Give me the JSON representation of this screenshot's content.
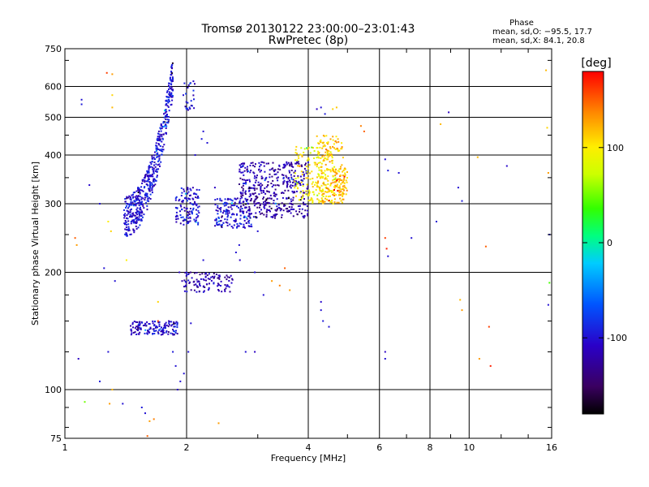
{
  "header": {
    "title_line1": "Tromsø 20130122 23:00:00–23:01:43",
    "title_line2": "RwPretec (8p)",
    "phase_heading": "Phase",
    "phase_line1": "mean, sd,O: −95.5, 17.7",
    "phase_line2": "mean, sd,X:  84.1, 20.8"
  },
  "colorbar": {
    "label": "[deg]",
    "ticks": [
      {
        "value": 100,
        "label": "100"
      },
      {
        "value": 0,
        "label": "0"
      },
      {
        "value": -100,
        "label": "-100"
      }
    ],
    "range": [
      -180,
      180
    ]
  },
  "chart_data": {
    "type": "scatter",
    "title": "Tromsø 20130122 23:00:00–23:01:43",
    "subtitle": "RwPretec (8p)",
    "xlabel": "Frequency [MHz]",
    "ylabel": "Stationary phase Virtual Height [km]",
    "xscale": "log",
    "yscale": "log",
    "xlim": [
      1,
      16
    ],
    "ylim": [
      75,
      750
    ],
    "grid": true,
    "xticks": [
      {
        "value": 1,
        "label": "1"
      },
      {
        "value": 2,
        "label": "2"
      },
      {
        "value": 4,
        "label": "4"
      },
      {
        "value": 6,
        "label": "6"
      },
      {
        "value": 8,
        "label": "8"
      },
      {
        "value": 10,
        "label": "10"
      },
      {
        "value": 16,
        "label": "16"
      }
    ],
    "yticks": [
      {
        "value": 75,
        "label": "75"
      },
      {
        "value": 100,
        "label": "100"
      },
      {
        "value": 200,
        "label": "200"
      },
      {
        "value": 300,
        "label": "300"
      },
      {
        "value": 400,
        "label": "400"
      },
      {
        "value": 500,
        "label": "500"
      },
      {
        "value": 600,
        "label": "600"
      },
      {
        "value": 750,
        "label": "750"
      }
    ],
    "color_by": "phase (deg)",
    "points": [
      [
        1.1,
        555,
        -100
      ],
      [
        1.1,
        540,
        -95
      ],
      [
        1.27,
        650,
        160
      ],
      [
        1.31,
        645,
        130
      ],
      [
        1.31,
        570,
        110
      ],
      [
        1.31,
        530,
        120
      ],
      [
        1.15,
        335,
        -105
      ],
      [
        1.22,
        300,
        -100
      ],
      [
        1.28,
        270,
        100
      ],
      [
        1.3,
        255,
        110
      ],
      [
        1.06,
        245,
        150
      ],
      [
        1.07,
        235,
        130
      ],
      [
        1.25,
        205,
        -100
      ],
      [
        1.33,
        190,
        -100
      ],
      [
        1.42,
        215,
        100
      ],
      [
        1.45,
        250,
        -100
      ],
      [
        1.08,
        120,
        -110
      ],
      [
        1.22,
        105,
        -95
      ],
      [
        1.28,
        125,
        -100
      ],
      [
        1.31,
        100,
        120
      ],
      [
        1.29,
        92,
        130
      ],
      [
        1.12,
        93,
        50
      ],
      [
        1.39,
        92,
        -100
      ],
      [
        1.55,
        90,
        -95
      ],
      [
        1.58,
        87,
        -100
      ],
      [
        1.62,
        83,
        130
      ],
      [
        1.66,
        84,
        140
      ],
      [
        1.6,
        76,
        150
      ],
      [
        1.92,
        200,
        -110
      ],
      [
        1.95,
        190,
        -120
      ],
      [
        2.05,
        148,
        -100
      ],
      [
        2.02,
        125,
        -100
      ],
      [
        1.97,
        110,
        -100
      ],
      [
        1.93,
        105,
        -100
      ],
      [
        1.9,
        100,
        -110
      ],
      [
        1.88,
        115,
        -100
      ],
      [
        1.85,
        125,
        -95
      ],
      [
        1.7,
        168,
        110
      ],
      [
        1.7,
        150,
        160
      ],
      [
        1.75,
        140,
        -100
      ],
      [
        2.1,
        400,
        -100
      ],
      [
        2.2,
        460,
        -100
      ],
      [
        2.18,
        440,
        -95
      ],
      [
        2.25,
        430,
        -100
      ],
      [
        2.35,
        330,
        -110
      ],
      [
        2.4,
        265,
        -100
      ],
      [
        2.7,
        235,
        -100
      ],
      [
        2.71,
        215,
        -110
      ],
      [
        2.65,
        225,
        -100
      ],
      [
        2.2,
        215,
        -100
      ],
      [
        2.4,
        82,
        130
      ],
      [
        2.8,
        125,
        -100
      ],
      [
        2.95,
        125,
        -110
      ],
      [
        2.95,
        200,
        -100
      ],
      [
        3.0,
        255,
        -100
      ],
      [
        3.25,
        190,
        130
      ],
      [
        3.4,
        185,
        140
      ],
      [
        3.5,
        205,
        150
      ],
      [
        3.1,
        175,
        -100
      ],
      [
        3.05,
        330,
        -95
      ],
      [
        3.15,
        350,
        -100
      ],
      [
        3.6,
        180,
        130
      ],
      [
        4.2,
        525,
        -110
      ],
      [
        4.3,
        530,
        -100
      ],
      [
        4.4,
        510,
        -95
      ],
      [
        4.6,
        525,
        110
      ],
      [
        4.7,
        530,
        115
      ],
      [
        5.4,
        475,
        140
      ],
      [
        5.5,
        460,
        150
      ],
      [
        4.3,
        168,
        -105
      ],
      [
        4.3,
        160,
        -100
      ],
      [
        4.35,
        150,
        -95
      ],
      [
        4.5,
        145,
        -100
      ],
      [
        6.2,
        390,
        -100
      ],
      [
        6.3,
        365,
        -95
      ],
      [
        6.7,
        360,
        -100
      ],
      [
        6.2,
        245,
        160
      ],
      [
        6.25,
        230,
        170
      ],
      [
        6.3,
        220,
        -100
      ],
      [
        6.2,
        125,
        -110
      ],
      [
        6.2,
        120,
        -100
      ],
      [
        7.2,
        245,
        -100
      ],
      [
        8.3,
        270,
        -100
      ],
      [
        8.5,
        480,
        120
      ],
      [
        8.9,
        515,
        -110
      ],
      [
        9.6,
        305,
        -95
      ],
      [
        9.4,
        330,
        -100
      ],
      [
        9.5,
        170,
        120
      ],
      [
        9.6,
        160,
        130
      ],
      [
        10.5,
        395,
        120
      ],
      [
        10.6,
        120,
        130
      ],
      [
        11.0,
        233,
        150
      ],
      [
        11.2,
        145,
        160
      ],
      [
        11.3,
        115,
        170
      ],
      [
        12.4,
        375,
        -105
      ],
      [
        15.5,
        660,
        120
      ],
      [
        15.6,
        470,
        110
      ],
      [
        15.7,
        360,
        130
      ],
      [
        15.8,
        250,
        -95
      ],
      [
        15.8,
        188,
        40
      ],
      [
        15.7,
        165,
        -100
      ]
    ],
    "clusters": [
      {
        "x_range": [
          1.4,
          1.85
        ],
        "y_range": [
          280,
          640
        ],
        "phase": -100,
        "shape": "arc",
        "count": 520
      },
      {
        "x_range": [
          1.45,
          1.9
        ],
        "y_range": [
          138,
          150
        ],
        "phase": -105,
        "shape": "band",
        "count": 150
      },
      {
        "x_range": [
          1.88,
          2.15
        ],
        "y_range": [
          265,
          330
        ],
        "phase": -100,
        "shape": "blob",
        "count": 120
      },
      {
        "x_range": [
          1.95,
          2.1
        ],
        "y_range": [
          520,
          620
        ],
        "phase": -100,
        "shape": "blob",
        "count": 25
      },
      {
        "x_range": [
          1.97,
          2.6
        ],
        "y_range": [
          178,
          200
        ],
        "phase": -115,
        "shape": "blob",
        "count": 110
      },
      {
        "x_range": [
          2.35,
          2.9
        ],
        "y_range": [
          260,
          310
        ],
        "phase": -100,
        "shape": "blob",
        "count": 160
      },
      {
        "x_range": [
          2.7,
          4.0
        ],
        "y_range": [
          275,
          385
        ],
        "phase": -120,
        "shape": "blob",
        "count": 450
      },
      {
        "x_range": [
          3.7,
          4.6
        ],
        "y_range": [
          300,
          420
        ],
        "phase": 95,
        "shape": "blob",
        "count": 160
      },
      {
        "x_range": [
          4.2,
          4.9
        ],
        "y_range": [
          300,
          450
        ],
        "phase": 115,
        "shape": "blob",
        "count": 180
      },
      {
        "x_range": [
          4.6,
          5.0
        ],
        "y_range": [
          315,
          370
        ],
        "phase": 120,
        "shape": "blob",
        "count": 70
      }
    ]
  }
}
